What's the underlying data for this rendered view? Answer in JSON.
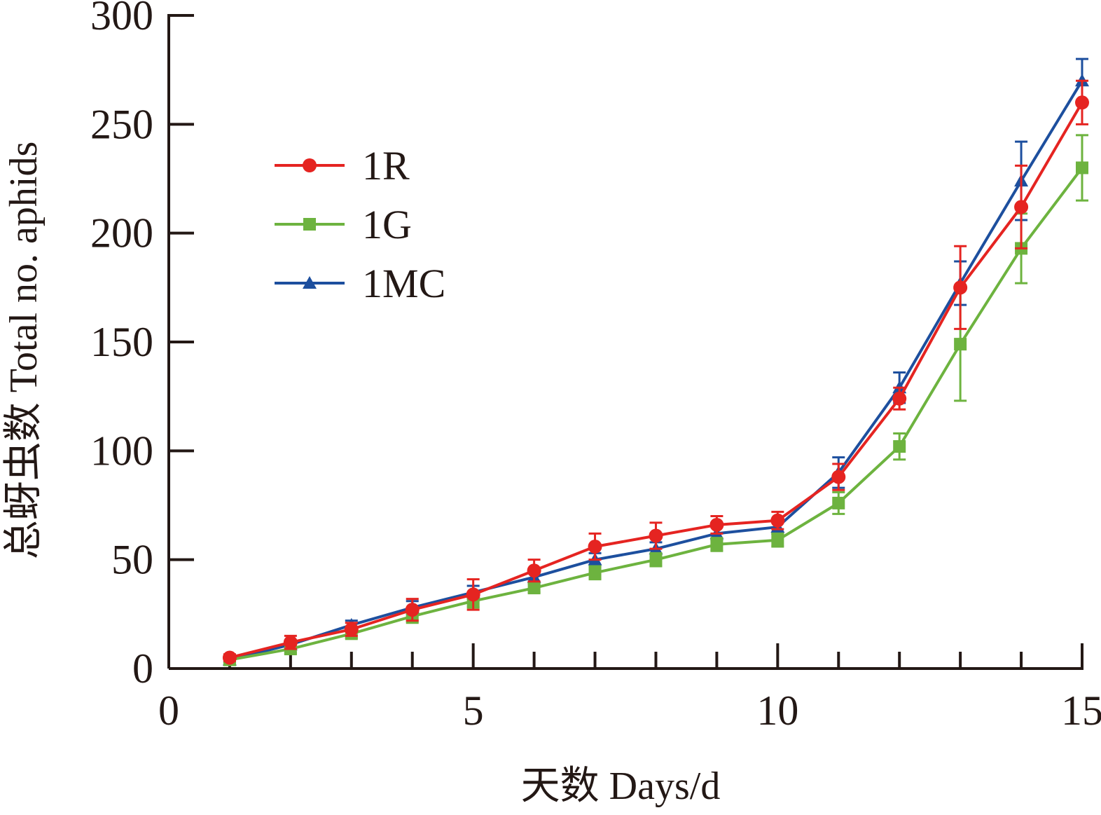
{
  "chart_data": {
    "type": "line",
    "xlabel": "天数 Days/d",
    "ylabel": "总蚜虫数 Total no. aphids",
    "xlim": [
      0,
      15
    ],
    "ylim": [
      0,
      300
    ],
    "x_ticks": [
      "0",
      "5",
      "10",
      "15"
    ],
    "y_ticks": [
      "0",
      "50",
      "100",
      "150",
      "200",
      "250",
      "300"
    ],
    "legend_position": "upper-left",
    "grid": false,
    "x": [
      1,
      2,
      3,
      4,
      5,
      6,
      7,
      8,
      9,
      10,
      11,
      12,
      13,
      14,
      15
    ],
    "series": [
      {
        "name": "1R",
        "color": "#e52421",
        "marker": "circle",
        "values": [
          5,
          12,
          18,
          27,
          34,
          45,
          56,
          61,
          66,
          68,
          88,
          124,
          175,
          212,
          260
        ],
        "errors": [
          1.5,
          3,
          3,
          5,
          7,
          5,
          6,
          6,
          4,
          4,
          6,
          5,
          19,
          19,
          10
        ]
      },
      {
        "name": "1G",
        "color": "#6db33f",
        "marker": "square",
        "values": [
          4,
          9,
          16,
          24,
          31,
          37,
          44,
          50,
          57,
          59,
          76,
          102,
          149,
          193,
          230
        ],
        "errors": [
          1,
          2,
          2,
          3,
          3,
          2,
          3,
          3,
          3,
          3,
          5,
          6,
          26,
          16,
          15
        ]
      },
      {
        "name": "1MC",
        "color": "#1d4f9e",
        "marker": "triangle",
        "values": [
          4,
          11,
          20,
          28,
          35,
          42,
          50,
          55,
          62,
          65,
          90,
          129,
          177,
          224,
          270
        ],
        "errors": [
          1,
          2,
          2,
          3,
          3,
          3,
          3,
          3,
          3,
          3,
          7,
          7,
          10,
          18,
          10
        ]
      }
    ]
  }
}
